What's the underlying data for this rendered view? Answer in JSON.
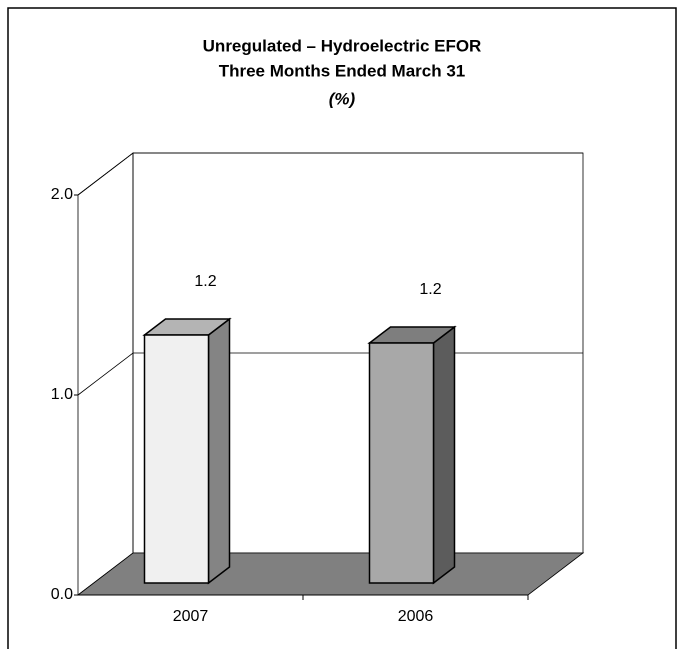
{
  "chart_data": {
    "type": "bar3d",
    "title": "Unregulated  –  Hydroelectric EFOR",
    "subtitle": "Three Months Ended March 31",
    "unit": "(%)",
    "categories": [
      "2007",
      "2006"
    ],
    "values": [
      1.24,
      1.2
    ],
    "value_labels": [
      "1.2",
      "1.2"
    ],
    "colors": [
      "#f0f0f0",
      "#a8a8a8"
    ],
    "ylim": [
      0,
      2
    ],
    "yticks": [
      {
        "value": 0,
        "label": "0.0"
      },
      {
        "value": 1,
        "label": "1.0"
      },
      {
        "value": 2,
        "label": "2.0"
      }
    ],
    "grid": true
  }
}
